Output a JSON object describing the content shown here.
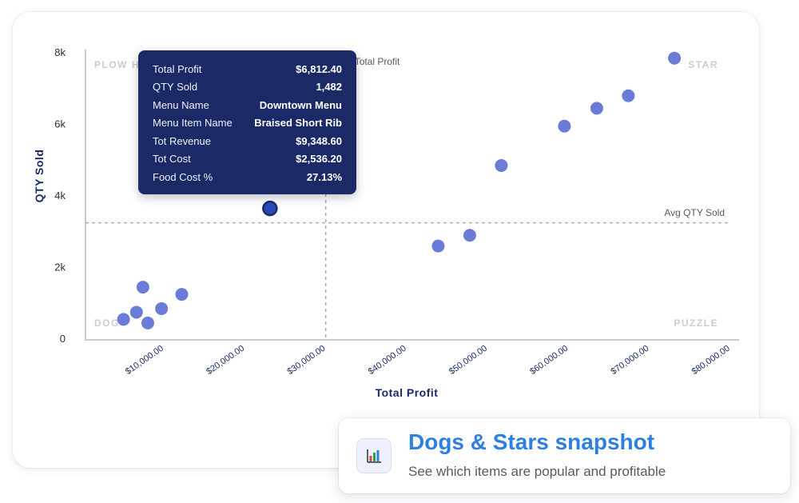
{
  "chart_data": {
    "type": "scatter",
    "xlabel": "Total Profit",
    "ylabel": "QTY Sold",
    "xlim": [
      0,
      80000
    ],
    "ylim": [
      0,
      8000
    ],
    "x_ticks": [
      {
        "value": 10000,
        "label": "$10,000.00"
      },
      {
        "value": 20000,
        "label": "$20,000.00"
      },
      {
        "value": 30000,
        "label": "$30,000.00"
      },
      {
        "value": 40000,
        "label": "$40,000.00"
      },
      {
        "value": 50000,
        "label": "$50,000.00"
      },
      {
        "value": 60000,
        "label": "$60,000.00"
      },
      {
        "value": 70000,
        "label": "$70,000.00"
      },
      {
        "value": 80000,
        "label": "$80,000.00"
      }
    ],
    "y_ticks": [
      {
        "value": 0,
        "label": "0"
      },
      {
        "value": 2000,
        "label": "2k"
      },
      {
        "value": 4000,
        "label": "4k"
      },
      {
        "value": 6000,
        "label": "6k"
      },
      {
        "value": 8000,
        "label": "8k"
      }
    ],
    "reference_lines": {
      "avg_profit": {
        "value": 29700,
        "label": "Total Profit"
      },
      "avg_qty": {
        "value": 3250,
        "label": "Avg QTY Sold"
      }
    },
    "quadrant_labels": {
      "top_left": "PLOW H",
      "top_right": "STAR",
      "bottom_left": "DOG",
      "bottom_right": "PUZZLE"
    },
    "points": [
      {
        "x": 4700,
        "y": 550
      },
      {
        "x": 6300,
        "y": 750
      },
      {
        "x": 7100,
        "y": 1450
      },
      {
        "x": 7700,
        "y": 450
      },
      {
        "x": 9400,
        "y": 850
      },
      {
        "x": 11900,
        "y": 1250
      },
      {
        "x": 22800,
        "y": 3650,
        "highlighted": true
      },
      {
        "x": 43600,
        "y": 2600
      },
      {
        "x": 47500,
        "y": 2900
      },
      {
        "x": 51400,
        "y": 4850
      },
      {
        "x": 59200,
        "y": 5950
      },
      {
        "x": 63200,
        "y": 6450
      },
      {
        "x": 67100,
        "y": 6800
      },
      {
        "x": 72800,
        "y": 7850
      }
    ],
    "grid": false,
    "colors": {
      "point": "#6b7bd8",
      "highlight": "#2a48b8",
      "highlight_stroke": "#1b2a67",
      "axis": "#c8cbd2",
      "ref_line": "#a9adb5",
      "axis_title": "#1b2a67",
      "x_tick_text": "#1b2a67",
      "y_tick_text": "#2b2f3a",
      "quadrant_text": "#c9ccd3",
      "ref_text": "#555b66"
    }
  },
  "tooltip": {
    "rows": [
      {
        "key": "Total Profit",
        "value": "$6,812.40"
      },
      {
        "key": "QTY Sold",
        "value": "1,482"
      },
      {
        "key": "Menu Name",
        "value": "Downtown Menu"
      },
      {
        "key": "Menu Item Name",
        "value": "Braised Short Rib"
      },
      {
        "key": "Tot Revenue",
        "value": "$9,348.60"
      },
      {
        "key": "Tot Cost",
        "value": "$2,536.20"
      },
      {
        "key": "Food Cost %",
        "value": "27.13%"
      }
    ],
    "background": "#1b2a67"
  },
  "snapshot": {
    "icon": "bar-chart-icon",
    "title": "Dogs & Stars snapshot",
    "subtitle": "See which items are popular and profitable",
    "title_color": "#2d7fe0"
  }
}
